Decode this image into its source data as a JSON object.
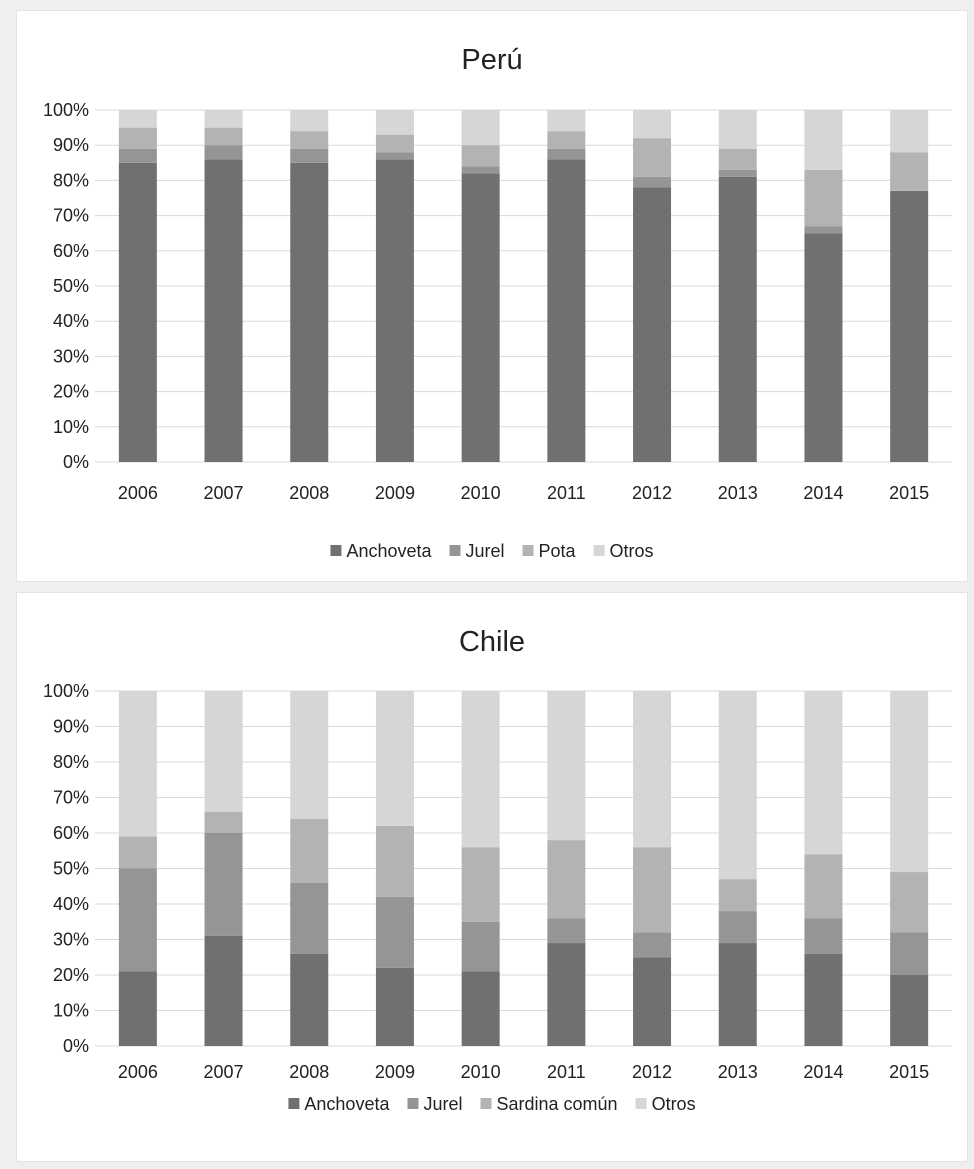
{
  "chart_data": [
    {
      "type": "bar",
      "stacked": "percent",
      "title": "Perú",
      "categories": [
        "2006",
        "2007",
        "2008",
        "2009",
        "2010",
        "2011",
        "2012",
        "2013",
        "2014",
        "2015"
      ],
      "y_ticks": [
        "0%",
        "10%",
        "20%",
        "30%",
        "40%",
        "50%",
        "60%",
        "70%",
        "80%",
        "90%",
        "100%"
      ],
      "ylim": [
        0,
        100
      ],
      "legend_position": "bottom",
      "grid": true,
      "series": [
        {
          "name": "Anchoveta",
          "color": "#707070",
          "values": [
            85,
            86,
            85,
            86,
            82,
            86,
            78,
            81,
            65,
            77
          ]
        },
        {
          "name": "Jurel",
          "color": "#959595",
          "values": [
            4,
            4,
            4,
            2,
            2,
            3,
            3,
            2,
            2,
            0
          ]
        },
        {
          "name": "Pota",
          "color": "#b3b3b3",
          "values": [
            6,
            5,
            5,
            5,
            6,
            5,
            11,
            6,
            16,
            11
          ]
        },
        {
          "name": "Otros",
          "color": "#d6d6d6",
          "values": [
            5,
            5,
            6,
            7,
            10,
            6,
            8,
            11,
            17,
            12
          ]
        }
      ]
    },
    {
      "type": "bar",
      "stacked": "percent",
      "title": "Chile",
      "categories": [
        "2006",
        "2007",
        "2008",
        "2009",
        "2010",
        "2011",
        "2012",
        "2013",
        "2014",
        "2015"
      ],
      "y_ticks": [
        "0%",
        "10%",
        "20%",
        "30%",
        "40%",
        "50%",
        "60%",
        "70%",
        "80%",
        "90%",
        "100%"
      ],
      "ylim": [
        0,
        100
      ],
      "legend_position": "bottom",
      "grid": true,
      "series": [
        {
          "name": "Anchoveta",
          "color": "#707070",
          "values": [
            21,
            31,
            26,
            22,
            21,
            29,
            25,
            29,
            26,
            20
          ]
        },
        {
          "name": "Jurel",
          "color": "#959595",
          "values": [
            29,
            29,
            20,
            20,
            14,
            7,
            7,
            9,
            10,
            12
          ]
        },
        {
          "name": "Sardina común",
          "color": "#b3b3b3",
          "values": [
            9,
            6,
            18,
            20,
            21,
            22,
            24,
            9,
            18,
            17
          ]
        },
        {
          "name": "Otros",
          "color": "#d6d6d6",
          "values": [
            41,
            34,
            36,
            38,
            44,
            42,
            44,
            53,
            46,
            51
          ]
        }
      ]
    }
  ]
}
